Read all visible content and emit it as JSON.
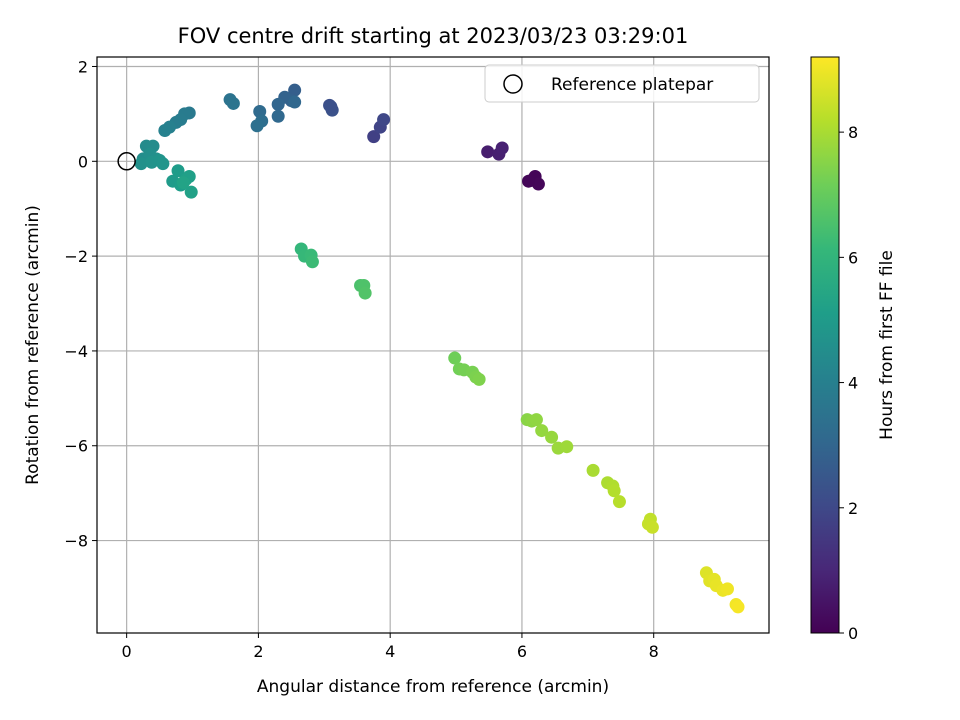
{
  "chart_data": {
    "type": "scatter",
    "title": "FOV centre drift starting at 2023/03/23 03:29:01",
    "xlabel": "Angular distance from reference (arcmin)",
    "ylabel": "Rotation from reference (arcmin)",
    "xlim": [
      -0.45,
      9.75
    ],
    "ylim": [
      -9.95,
      2.2
    ],
    "x_ticks": [
      0,
      2,
      4,
      6,
      8
    ],
    "y_ticks": [
      2,
      0,
      -2,
      -4,
      -6,
      -8
    ],
    "grid": true,
    "legend": {
      "placement": "top-right",
      "entries": [
        "Reference platepar"
      ]
    },
    "reference_point": {
      "x": 0,
      "y": 0
    },
    "colorbar": {
      "label": "Hours from first FF file",
      "range": [
        0,
        9.2
      ],
      "ticks": [
        0,
        2,
        4,
        6,
        8
      ],
      "colormap": "viridis"
    },
    "colormap_stops": [
      "#440154",
      "#482878",
      "#3e4a89",
      "#31688e",
      "#26828e",
      "#1f9e89",
      "#35b779",
      "#6ece58",
      "#b5de2b",
      "#fde725"
    ],
    "points": [
      {
        "x": 6.15,
        "y": -0.4,
        "c": 0.05
      },
      {
        "x": 6.2,
        "y": -0.32,
        "c": 0.1
      },
      {
        "x": 6.25,
        "y": -0.48,
        "c": 0.15
      },
      {
        "x": 6.1,
        "y": -0.42,
        "c": 0.12
      },
      {
        "x": 5.48,
        "y": 0.2,
        "c": 0.75
      },
      {
        "x": 5.65,
        "y": 0.15,
        "c": 0.8
      },
      {
        "x": 5.7,
        "y": 0.28,
        "c": 0.85
      },
      {
        "x": 3.75,
        "y": 0.52,
        "c": 1.75
      },
      {
        "x": 3.85,
        "y": 0.72,
        "c": 1.85
      },
      {
        "x": 3.9,
        "y": 0.88,
        "c": 1.95
      },
      {
        "x": 3.08,
        "y": 1.18,
        "c": 2.2
      },
      {
        "x": 3.12,
        "y": 1.08,
        "c": 2.3
      },
      {
        "x": 3.1,
        "y": 1.15,
        "c": 2.25
      },
      {
        "x": 2.55,
        "y": 1.5,
        "c": 2.75
      },
      {
        "x": 2.5,
        "y": 1.28,
        "c": 2.85
      },
      {
        "x": 2.4,
        "y": 1.35,
        "c": 2.9
      },
      {
        "x": 2.3,
        "y": 1.2,
        "c": 3.0
      },
      {
        "x": 2.55,
        "y": 1.25,
        "c": 3.05
      },
      {
        "x": 2.3,
        "y": 0.95,
        "c": 3.1
      },
      {
        "x": 2.02,
        "y": 1.05,
        "c": 3.2
      },
      {
        "x": 2.05,
        "y": 0.85,
        "c": 3.3
      },
      {
        "x": 1.98,
        "y": 0.75,
        "c": 3.4
      },
      {
        "x": 1.57,
        "y": 1.3,
        "c": 3.5
      },
      {
        "x": 1.62,
        "y": 1.22,
        "c": 3.55
      },
      {
        "x": 0.95,
        "y": 1.02,
        "c": 3.75
      },
      {
        "x": 0.88,
        "y": 1.0,
        "c": 3.8
      },
      {
        "x": 0.82,
        "y": 0.88,
        "c": 3.85
      },
      {
        "x": 0.75,
        "y": 0.82,
        "c": 3.9
      },
      {
        "x": 0.65,
        "y": 0.72,
        "c": 4.0
      },
      {
        "x": 0.58,
        "y": 0.65,
        "c": 4.05
      },
      {
        "x": 0.3,
        "y": 0.32,
        "c": 4.4
      },
      {
        "x": 0.4,
        "y": 0.32,
        "c": 4.45
      },
      {
        "x": 0.25,
        "y": 0.05,
        "c": 4.5
      },
      {
        "x": 0.35,
        "y": 0.15,
        "c": 4.55
      },
      {
        "x": 0.45,
        "y": 0.05,
        "c": 4.6
      },
      {
        "x": 0.22,
        "y": -0.05,
        "c": 4.65
      },
      {
        "x": 0.38,
        "y": -0.02,
        "c": 4.7
      },
      {
        "x": 0.5,
        "y": 0.02,
        "c": 4.75
      },
      {
        "x": 0.55,
        "y": -0.05,
        "c": 4.8
      },
      {
        "x": 0.7,
        "y": -0.42,
        "c": 5.0
      },
      {
        "x": 0.78,
        "y": -0.2,
        "c": 5.05
      },
      {
        "x": 0.82,
        "y": -0.5,
        "c": 5.1
      },
      {
        "x": 0.9,
        "y": -0.38,
        "c": 5.15
      },
      {
        "x": 0.95,
        "y": -0.32,
        "c": 5.2
      },
      {
        "x": 0.98,
        "y": -0.65,
        "c": 5.25
      },
      {
        "x": 0.86,
        "y": -0.45,
        "c": 5.3
      },
      {
        "x": 2.65,
        "y": -1.85,
        "c": 6.1
      },
      {
        "x": 2.7,
        "y": -2.0,
        "c": 6.15
      },
      {
        "x": 2.8,
        "y": -1.98,
        "c": 6.2
      },
      {
        "x": 2.82,
        "y": -2.12,
        "c": 6.25
      },
      {
        "x": 3.55,
        "y": -2.62,
        "c": 6.55
      },
      {
        "x": 3.6,
        "y": -2.62,
        "c": 6.6
      },
      {
        "x": 3.62,
        "y": -2.78,
        "c": 6.65
      },
      {
        "x": 4.98,
        "y": -4.15,
        "c": 7.15
      },
      {
        "x": 5.05,
        "y": -4.38,
        "c": 7.2
      },
      {
        "x": 5.12,
        "y": -4.4,
        "c": 7.25
      },
      {
        "x": 5.25,
        "y": -4.45,
        "c": 7.3
      },
      {
        "x": 5.3,
        "y": -4.55,
        "c": 7.35
      },
      {
        "x": 5.35,
        "y": -4.6,
        "c": 7.4
      },
      {
        "x": 6.08,
        "y": -5.45,
        "c": 7.55
      },
      {
        "x": 6.15,
        "y": -5.48,
        "c": 7.6
      },
      {
        "x": 6.22,
        "y": -5.45,
        "c": 7.65
      },
      {
        "x": 6.3,
        "y": -5.68,
        "c": 7.7
      },
      {
        "x": 6.45,
        "y": -5.82,
        "c": 7.75
      },
      {
        "x": 6.55,
        "y": -6.05,
        "c": 7.8
      },
      {
        "x": 6.68,
        "y": -6.02,
        "c": 7.85
      },
      {
        "x": 7.08,
        "y": -6.52,
        "c": 8.0
      },
      {
        "x": 7.3,
        "y": -6.78,
        "c": 8.05
      },
      {
        "x": 7.38,
        "y": -6.85,
        "c": 8.1
      },
      {
        "x": 7.4,
        "y": -6.95,
        "c": 8.15
      },
      {
        "x": 7.48,
        "y": -7.18,
        "c": 8.2
      },
      {
        "x": 7.95,
        "y": -7.55,
        "c": 8.35
      },
      {
        "x": 7.92,
        "y": -7.65,
        "c": 8.4
      },
      {
        "x": 7.98,
        "y": -7.72,
        "c": 8.45
      },
      {
        "x": 8.8,
        "y": -8.68,
        "c": 8.75
      },
      {
        "x": 8.85,
        "y": -8.85,
        "c": 8.8
      },
      {
        "x": 8.92,
        "y": -8.82,
        "c": 8.85
      },
      {
        "x": 8.95,
        "y": -8.95,
        "c": 8.9
      },
      {
        "x": 9.05,
        "y": -9.05,
        "c": 8.95
      },
      {
        "x": 9.12,
        "y": -9.02,
        "c": 9.0
      },
      {
        "x": 9.25,
        "y": -9.35,
        "c": 9.05
      },
      {
        "x": 9.28,
        "y": -9.4,
        "c": 9.1
      }
    ]
  }
}
